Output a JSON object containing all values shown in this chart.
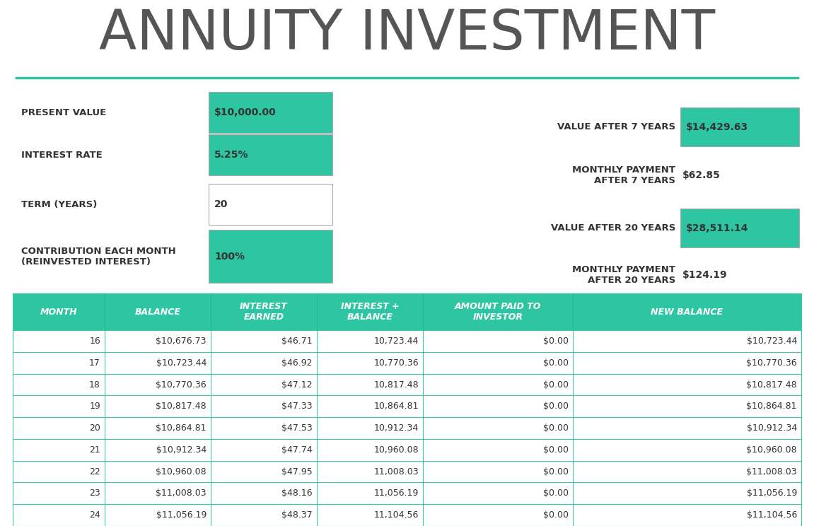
{
  "title": "ANNUITY INVESTMENT",
  "title_color": "#555555",
  "teal_color": "#2DC5A2",
  "separator_color": "#2DC5A2",
  "left_labels": [
    "PRESENT VALUE",
    "INTEREST RATE",
    "TERM (YEARS)",
    "CONTRIBUTION EACH MONTH\n(REINVESTED INTEREST)"
  ],
  "left_values": [
    "$10,000.00",
    "5.25%",
    "20",
    "100%"
  ],
  "left_teal": [
    true,
    true,
    false,
    true
  ],
  "right_labels": [
    "VALUE AFTER 7 YEARS",
    "MONTHLY PAYMENT\nAFTER 7 YEARS",
    "VALUE AFTER 20 YEARS",
    "MONTHLY PAYMENT\nAFTER 20 YEARS"
  ],
  "right_values": [
    "$14,429.63",
    "$62.85",
    "$28,511.14",
    "$124.19"
  ],
  "right_teal": [
    true,
    false,
    true,
    false
  ],
  "table_headers": [
    "MONTH",
    "BALANCE",
    "INTEREST\nEARNED",
    "INTEREST +\nBALANCE",
    "AMOUNT PAID TO\nINVESTOR",
    "NEW BALANCE"
  ],
  "table_rows": [
    [
      "16",
      "$10,676.73",
      "$46.71",
      "10,723.44",
      "$0.00",
      "$10,723.44"
    ],
    [
      "17",
      "$10,723.44",
      "$46.92",
      "10,770.36",
      "$0.00",
      "$10,770.36"
    ],
    [
      "18",
      "$10,770.36",
      "$47.12",
      "10,817.48",
      "$0.00",
      "$10,817.48"
    ],
    [
      "19",
      "$10,817.48",
      "$47.33",
      "10,864.81",
      "$0.00",
      "$10,864.81"
    ],
    [
      "20",
      "$10,864.81",
      "$47.53",
      "10,912.34",
      "$0.00",
      "$10,912.34"
    ],
    [
      "21",
      "$10,912.34",
      "$47.74",
      "10,960.08",
      "$0.00",
      "$10,960.08"
    ],
    [
      "22",
      "$10,960.08",
      "$47.95",
      "11,008.03",
      "$0.00",
      "$11,008.03"
    ],
    [
      "23",
      "$11,008.03",
      "$48.16",
      "11,056.19",
      "$0.00",
      "$11,056.19"
    ],
    [
      "24",
      "$11,056.19",
      "$48.37",
      "11,104.56",
      "$0.00",
      "$11,104.56"
    ]
  ],
  "background_color": "#ffffff",
  "text_dark": "#333333",
  "table_header_bg": "#2DC5A2",
  "table_header_text": "#ffffff",
  "table_border": "#3DC9A8"
}
